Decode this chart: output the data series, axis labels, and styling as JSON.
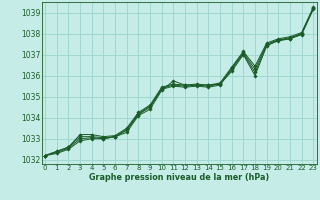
{
  "xlabel": "Graphe pression niveau de la mer (hPa)",
  "background_color": "#c5ece6",
  "grid_color": "#9ed8d0",
  "line_color": "#1a5c28",
  "ylim": [
    1031.8,
    1039.5
  ],
  "xlim": [
    -0.3,
    23.3
  ],
  "yticks": [
    1032,
    1033,
    1034,
    1035,
    1036,
    1037,
    1038,
    1039
  ],
  "xticks": [
    0,
    1,
    2,
    3,
    4,
    5,
    6,
    7,
    8,
    9,
    10,
    11,
    12,
    13,
    14,
    15,
    16,
    17,
    18,
    19,
    20,
    21,
    22,
    23
  ],
  "series": [
    [
      1032.2,
      1032.3,
      1032.5,
      1032.9,
      1033.0,
      1033.0,
      1033.1,
      1033.3,
      1034.1,
      1034.4,
      1035.3,
      1035.75,
      1035.55,
      1035.55,
      1035.55,
      1035.6,
      1036.2,
      1037.0,
      1036.0,
      1037.4,
      1037.7,
      1037.75,
      1038.0,
      1039.2
    ],
    [
      1032.2,
      1032.35,
      1032.55,
      1033.0,
      1033.05,
      1033.0,
      1033.1,
      1033.4,
      1034.15,
      1034.5,
      1035.35,
      1035.5,
      1035.45,
      1035.5,
      1035.45,
      1035.55,
      1036.3,
      1037.05,
      1036.15,
      1037.45,
      1037.65,
      1037.75,
      1037.95,
      1039.15
    ],
    [
      1032.2,
      1032.4,
      1032.6,
      1033.1,
      1033.1,
      1033.05,
      1033.1,
      1033.45,
      1034.2,
      1034.55,
      1035.4,
      1035.55,
      1035.5,
      1035.55,
      1035.5,
      1035.6,
      1036.35,
      1037.1,
      1036.3,
      1037.5,
      1037.7,
      1037.8,
      1038.0,
      1039.2
    ],
    [
      1032.2,
      1032.4,
      1032.6,
      1033.2,
      1033.2,
      1033.1,
      1033.15,
      1033.5,
      1034.25,
      1034.6,
      1035.45,
      1035.6,
      1035.55,
      1035.6,
      1035.55,
      1035.65,
      1036.4,
      1037.15,
      1036.45,
      1037.55,
      1037.75,
      1037.85,
      1038.05,
      1039.25
    ]
  ]
}
